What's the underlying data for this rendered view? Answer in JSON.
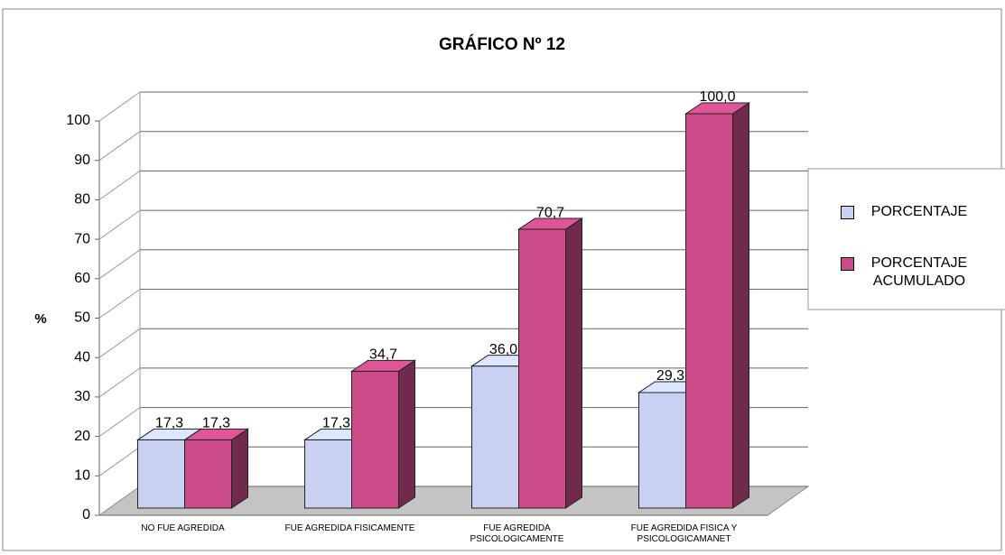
{
  "chart_data": {
    "type": "bar3d",
    "title": "GRÁFICO Nº 12",
    "y_label": "%",
    "categories": [
      "NO FUE AGREDIDA",
      "FUE AGREDIDA FISICAMENTE",
      "FUE AGREDIDA PSICOLOGICAMENTE",
      "FUE AGREDIDA FISICA Y PSICOLOGICAMANET"
    ],
    "series": [
      {
        "name": "PORCENTAJE",
        "color": "#c9d1f2",
        "values": [
          17.3,
          17.3,
          36.0,
          29.3
        ],
        "value_labels": [
          "17,3",
          "17,3",
          "36,0",
          "29,3"
        ]
      },
      {
        "name": "PORCENTAJE ACUMULADO",
        "color": "#cc4c8a",
        "values": [
          17.3,
          34.7,
          70.7,
          100.0
        ],
        "value_labels": [
          "17,3",
          "34,7",
          "70,7",
          "100,0"
        ]
      }
    ],
    "ylim": [
      0,
      100
    ],
    "yticks": [
      0,
      10,
      20,
      30,
      40,
      50,
      60,
      70,
      80,
      90,
      100
    ],
    "grid": true,
    "legend": "right"
  }
}
